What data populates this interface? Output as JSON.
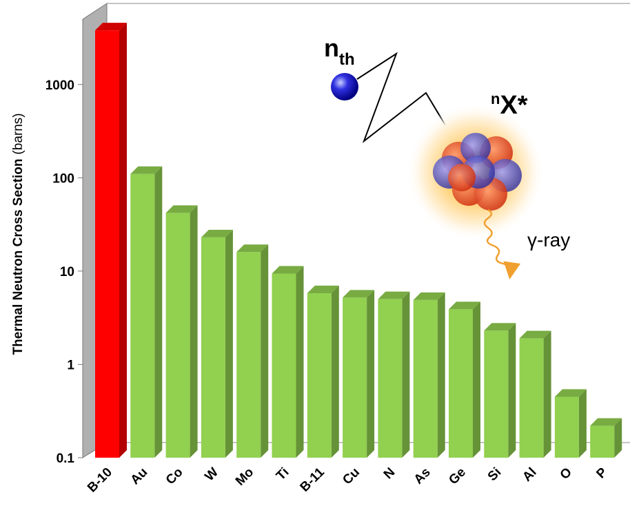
{
  "chart_data": {
    "type": "bar3d",
    "ylabel": "Thermal Neutron Cross Section",
    "yunit": "(barns)",
    "categories": [
      "B-10",
      "Au",
      "Co",
      "W",
      "Mo",
      "Ti",
      "B-11",
      "Cu",
      "N",
      "As",
      "Ge",
      "Si",
      "Al",
      "O",
      "P"
    ],
    "values": [
      3800,
      110,
      42,
      23,
      16,
      9.4,
      5.8,
      5.2,
      5.0,
      4.9,
      3.9,
      2.3,
      1.9,
      0.45,
      0.22
    ],
    "colors": [
      "#ff0000",
      "#92d050",
      "#92d050",
      "#92d050",
      "#92d050",
      "#92d050",
      "#92d050",
      "#92d050",
      "#92d050",
      "#92d050",
      "#92d050",
      "#92d050",
      "#92d050",
      "#92d050",
      "#92d050"
    ],
    "ylim": [
      0.1,
      5000
    ],
    "yticks": [
      0.1,
      1,
      10,
      100,
      1000
    ],
    "log_scale": true,
    "annotations": {
      "neutron": {
        "base": "n",
        "sub": "th"
      },
      "nucleus": {
        "sup": "n",
        "base": "X*"
      },
      "gamma": "γ-ray"
    }
  }
}
